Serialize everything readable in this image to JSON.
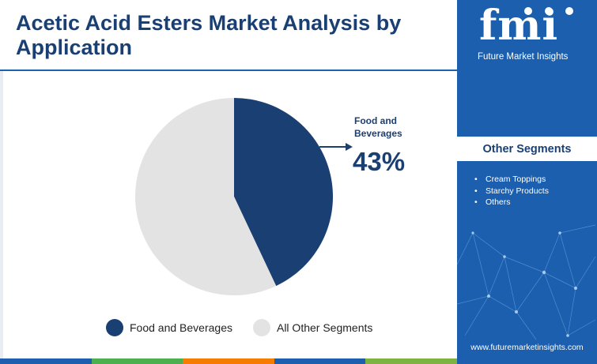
{
  "title": "Acetic Acid Esters Market Analysis by Application",
  "chart_data": {
    "type": "pie",
    "title": "Acetic Acid Esters Market Analysis by Application",
    "slices": [
      {
        "label": "Food and Beverages",
        "value": 43,
        "color": "#1a3f73"
      },
      {
        "label": "All Other Segments",
        "value": 57,
        "color": "#e3e3e3"
      }
    ],
    "callout": {
      "label": "Food and Beverages",
      "value_text": "43%"
    },
    "legend": [
      "Food and Beverages",
      "All Other Segments"
    ],
    "legend_placement": "bottom"
  },
  "side_panel": {
    "logo_text": "fmi",
    "logo_caption": "Future Market Insights",
    "segments_title": "Other Segments",
    "segments": [
      "Cream Toppings",
      "Starchy Products",
      "Others"
    ],
    "website": "www.futuremarketinsights.com"
  },
  "colors": {
    "primary": "#1a3f73",
    "panel": "#1b5fae",
    "other": "#e3e3e3",
    "stripe": [
      "#1b5fae",
      "#4caf50",
      "#f57c00",
      "#1b5fae",
      "#7cb342"
    ]
  }
}
